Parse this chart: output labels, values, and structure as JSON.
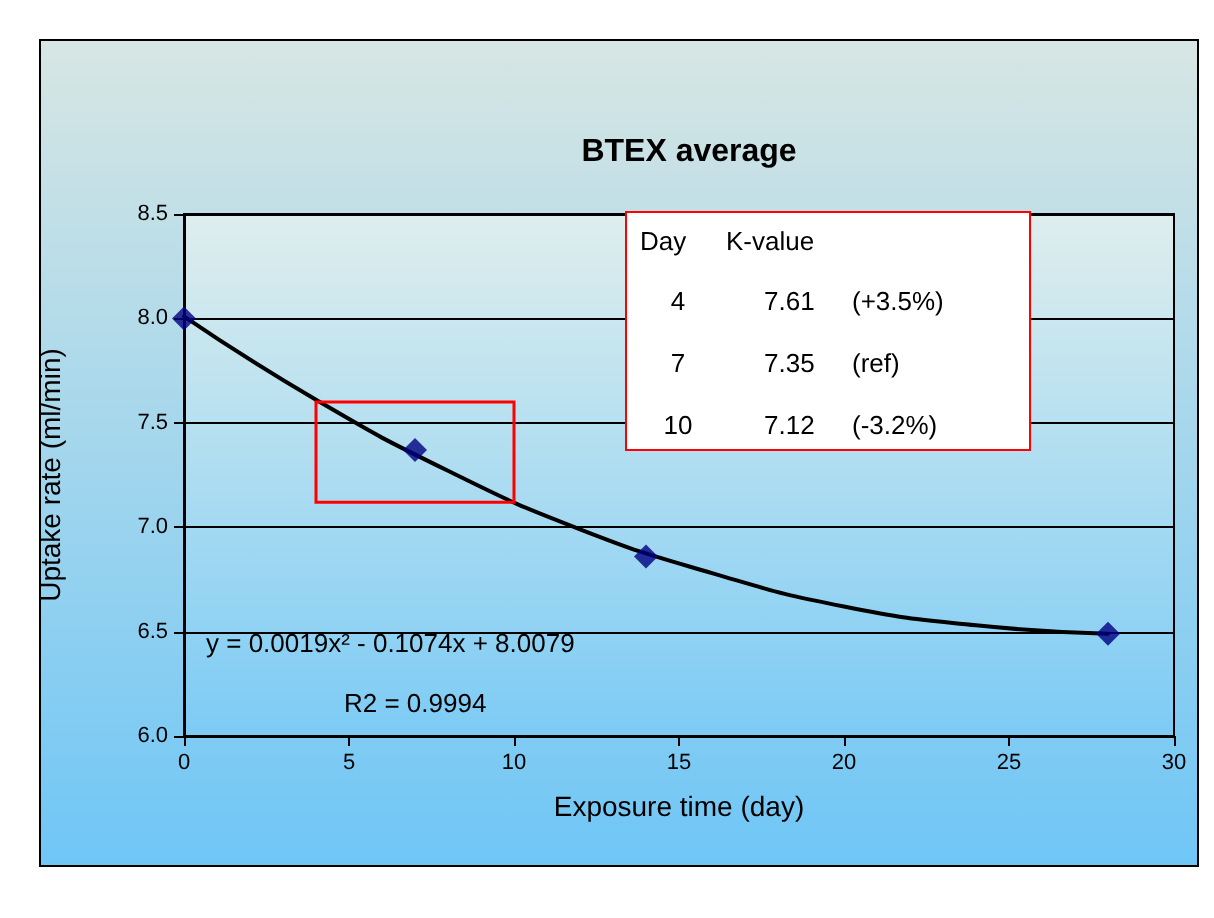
{
  "chart_data": {
    "type": "scatter",
    "title": "BTEX average",
    "xlabel": "Exposure time (day)",
    "ylabel": "Uptake rate (ml/min)",
    "series": [
      {
        "x": [
          0,
          7,
          14,
          28
        ],
        "values": [
          8.0,
          7.37,
          6.86,
          6.49
        ],
        "color": "#000080"
      },
      {
        "type": "line",
        "marker": "none",
        "x": [
          0,
          4,
          8,
          12,
          16,
          20,
          24,
          28
        ],
        "values": [
          8.01,
          7.61,
          7.27,
          6.99,
          6.78,
          6.62,
          6.53,
          6.49
        ],
        "color": "#000000"
      }
    ],
    "xlim": [
      0,
      30
    ],
    "xticks": [
      0,
      5,
      10,
      15,
      20,
      25,
      30
    ],
    "ylim": [
      6.0,
      8.5
    ],
    "yticks": [
      {
        "value": 6,
        "label": "6.0"
      },
      {
        "value": 6.5,
        "label": "6.5"
      },
      {
        "value": 7,
        "label": "7.0"
      },
      {
        "value": 7.5,
        "label": "7.5"
      },
      {
        "value": 8,
        "label": "8.0"
      },
      {
        "value": 8.5,
        "label": "8.5"
      }
    ],
    "grid": "y",
    "marker": "diamond",
    "line_style": "solid",
    "annotations": [
      "y = 0.0019x² - 0.1074x + 8.0079",
      "R2 = 0.9994",
      "Day",
      "K-value",
      "4",
      "7.61",
      "(+3.5%)",
      "7",
      "7.35",
      "(ref)",
      "10",
      "7.12",
      "(-3.2%)"
    ]
  }
}
